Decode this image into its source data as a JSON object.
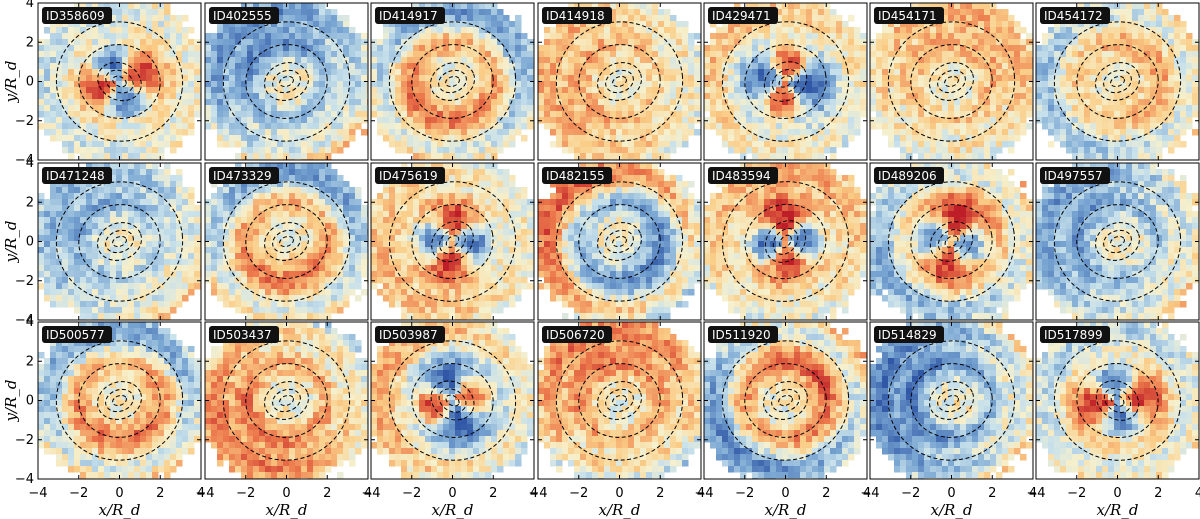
{
  "chart_data": {
    "type": "heatmap",
    "layout": "3 rows x 7 columns grid of galaxy maps with dashed contours",
    "colormap": "red-yellow-blue diverging",
    "colors": {
      "positive": "#c8262a",
      "neutral": "#f4efcf",
      "negative": "#2f60a8",
      "contour": "#000000"
    },
    "xlabel": "x/R_d",
    "ylabel": "y/R_d",
    "xlim": [
      -4,
      4
    ],
    "ylim": [
      -4,
      4
    ],
    "xticks": [
      "−4",
      "−2",
      "0",
      "2",
      "4"
    ],
    "yticks": [
      "4",
      "2",
      "0",
      "−2",
      "−4"
    ],
    "panels": [
      {
        "id": "ID358609",
        "pattern": "quadrupole",
        "angle": -25,
        "amp": 0.9,
        "ring": 0.2
      },
      {
        "id": "ID402555",
        "pattern": "ring",
        "angle": 0,
        "amp": 0.2,
        "ring": 0.7
      },
      {
        "id": "ID414917",
        "pattern": "ring",
        "angle": 0,
        "amp": 0.4,
        "ring": 0.6
      },
      {
        "id": "ID414918",
        "pattern": "ring",
        "angle": 0,
        "amp": 0.3,
        "ring": 0.4
      },
      {
        "id": "ID429471",
        "pattern": "quadrupole",
        "angle": 35,
        "amp": 0.9,
        "ring": 0.3
      },
      {
        "id": "ID454171",
        "pattern": "ring",
        "angle": 0,
        "amp": 0.3,
        "ring": 0.4
      },
      {
        "id": "ID454172",
        "pattern": "ring",
        "angle": 0,
        "amp": 0.2,
        "ring": 0.4
      },
      {
        "id": "ID471248",
        "pattern": "ring",
        "angle": 0,
        "amp": 0.3,
        "ring": 0.5
      },
      {
        "id": "ID473329",
        "pattern": "ring",
        "angle": 0,
        "amp": 0.1,
        "ring": 0.6
      },
      {
        "id": "ID475619",
        "pattern": "quadrupole",
        "angle": 40,
        "amp": 0.9,
        "ring": 0.3
      },
      {
        "id": "ID482155",
        "pattern": "ring",
        "angle": 0,
        "amp": 0.3,
        "ring": 0.7
      },
      {
        "id": "ID483594",
        "pattern": "quadrupole",
        "angle": 50,
        "amp": 0.9,
        "ring": 0.4
      },
      {
        "id": "ID489206",
        "pattern": "quadrupole",
        "angle": 35,
        "amp": 0.8,
        "ring": 0.5
      },
      {
        "id": "ID497557",
        "pattern": "ring",
        "angle": 0,
        "amp": 0.3,
        "ring": 0.6
      },
      {
        "id": "ID500577",
        "pattern": "ring",
        "angle": 0,
        "amp": 0.3,
        "ring": 0.6
      },
      {
        "id": "ID503437",
        "pattern": "ring",
        "angle": 0,
        "amp": 0.2,
        "ring": 0.6
      },
      {
        "id": "ID503987",
        "pattern": "quadrupole",
        "angle": -30,
        "amp": 0.9,
        "ring": 0.4
      },
      {
        "id": "ID506720",
        "pattern": "ring",
        "angle": 0,
        "amp": 0.4,
        "ring": 0.6
      },
      {
        "id": "ID511920",
        "pattern": "ring",
        "angle": 0,
        "amp": 0.3,
        "ring": 0.7
      },
      {
        "id": "ID514829",
        "pattern": "ring",
        "angle": 0,
        "amp": 0.4,
        "ring": 0.8
      },
      {
        "id": "ID517899",
        "pattern": "quadrupole",
        "angle": -35,
        "amp": 0.9,
        "ring": 0.3
      }
    ]
  }
}
